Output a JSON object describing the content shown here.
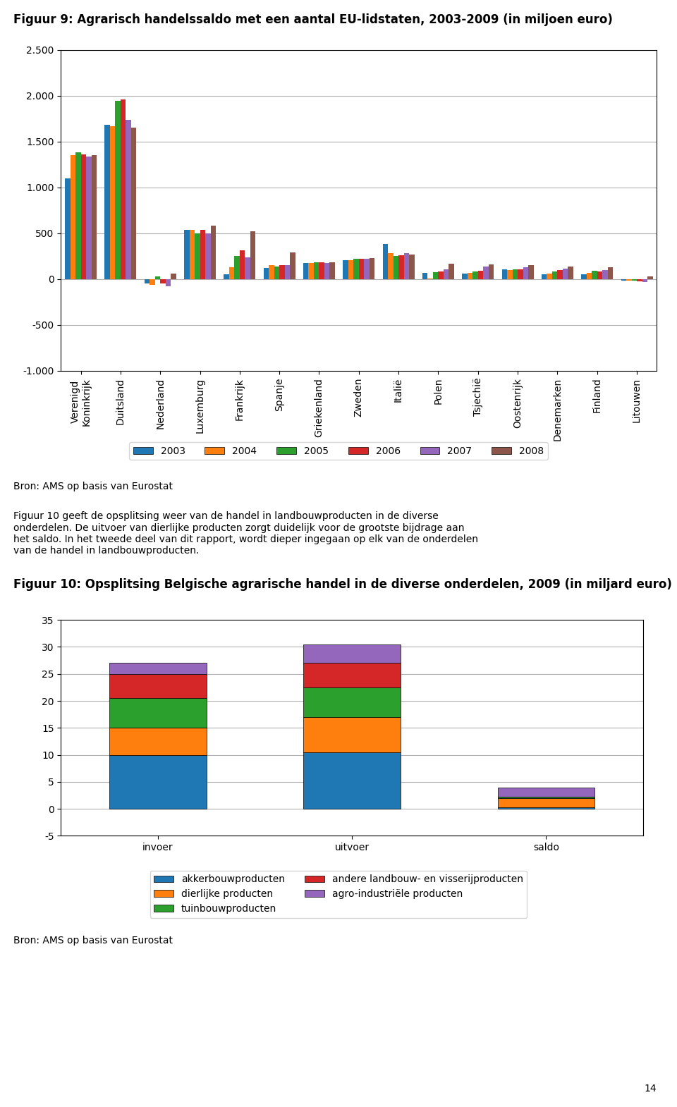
{
  "chart_data": [
    {
      "type": "bar",
      "title": "Figuur 9: Agrarisch handelssaldo met een aantal EU-lidstaten, 2003-2009 (in miljoen euro)",
      "categories": [
        "Verenigd\nKoninkrijk",
        "Duitsland",
        "Nederland",
        "Luxemburg",
        "Frankrijk",
        "Spanje",
        "Griekenland",
        "Zweden",
        "Italië",
        "Polen",
        "Tsjechië",
        "Oostenrijk",
        "Denemarken",
        "Finland",
        "Litouwen"
      ],
      "series": [
        {
          "name": "2003",
          "values": [
            1100,
            1680,
            -50,
            540,
            50,
            120,
            175,
            210,
            380,
            65,
            60,
            105,
            55,
            55,
            -20
          ]
        },
        {
          "name": "2004",
          "values": [
            1350,
            1670,
            -60,
            540,
            130,
            155,
            175,
            210,
            285,
            10,
            70,
            100,
            60,
            65,
            -20
          ]
        },
        {
          "name": "2005",
          "values": [
            1380,
            1940,
            30,
            500,
            250,
            140,
            185,
            220,
            250,
            75,
            80,
            110,
            85,
            90,
            -15
          ]
        },
        {
          "name": "2006",
          "values": [
            1360,
            1960,
            -50,
            540,
            315,
            150,
            185,
            225,
            260,
            80,
            90,
            110,
            100,
            80,
            -25
          ]
        },
        {
          "name": "2007",
          "values": [
            1340,
            1740,
            -80,
            500,
            240,
            155,
            175,
            225,
            280,
            110,
            140,
            130,
            115,
            100,
            -30
          ]
        },
        {
          "name": "2008",
          "values": [
            1350,
            1650,
            60,
            580,
            520,
            290,
            185,
            230,
            270,
            170,
            160,
            150,
            140,
            130,
            30
          ]
        }
      ],
      "ylim": [
        -1000,
        2500
      ],
      "yticks": [
        {
          "value": -1000,
          "label": "-1.000"
        },
        -500,
        0,
        500,
        {
          "value": 1000,
          "label": "1.000"
        },
        {
          "value": 1500,
          "label": "1.500"
        },
        {
          "value": 2000,
          "label": "2.000"
        },
        {
          "value": 2500,
          "label": "2.500"
        }
      ],
      "grid": true,
      "legend": "below",
      "annotations": [
        "Bron: AMS op basis van Eurostat",
        "Figuur 10 geeft de opsplitsing weer van de handel in landbouwproducten in de diverse\nonderdelen. De uitvoer van dierlijke producten zorgt duidelijk voor de grootste bijdrage aan\nhet saldo. In het tweede deel van dit rapport, wordt dieper ingegaan op elk van de onderdelen\nvan de handel in landbouwproducten."
      ]
    },
    {
      "type": "bar",
      "title": "Figuur 10: Opsplitsing Belgische agrarische handel in de diverse onderdelen, 2009 (in miljard euro)",
      "categories": [
        "invoer",
        "uitvoer",
        "saldo"
      ],
      "stacked": true,
      "series": [
        {
          "name": "akkerbouwproducten",
          "values": [
            10.0,
            10.5,
            0.3
          ]
        },
        {
          "name": "dierlijke producten",
          "values": [
            5.0,
            6.5,
            1.7
          ]
        },
        {
          "name": "tuinbouwproducten",
          "values": [
            5.5,
            5.5,
            0.2
          ]
        },
        {
          "name": "andere landbouw- en visserijproducten",
          "values": [
            4.5,
            4.5,
            0.05
          ]
        },
        {
          "name": "agro-industriële producten",
          "values": [
            2.0,
            3.5,
            1.7
          ]
        }
      ],
      "ylim": [
        -5,
        35
      ],
      "yticks": [
        -5,
        0,
        5,
        10,
        15,
        20,
        25,
        30,
        35
      ],
      "grid": true,
      "legend": "below",
      "annotations": [
        "Bron: AMS op basis van Eurostat",
        "14"
      ]
    }
  ]
}
